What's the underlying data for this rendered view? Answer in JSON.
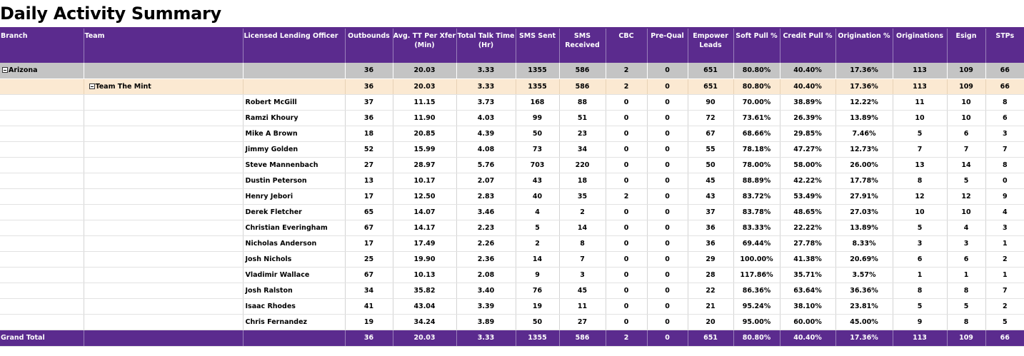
{
  "title": "Daily Activity Summary",
  "columns": {
    "branch": "Branch",
    "team": "Team",
    "officer": "Licensed Lending Officer",
    "outbounds": "Outbounds",
    "avg_tt": "Avg. TT Per Xfer (Min)",
    "total_talk": "Total Talk Time (Hr)",
    "sms_sent": "SMS Sent",
    "sms_received": "SMS Received",
    "cbc": "CBC",
    "prequal": "Pre-Qual",
    "empower": "Empower Leads",
    "soft_pull": "Soft Pull %",
    "credit_pull": "Credit Pull %",
    "origination_pct": "Origination %",
    "originations": "Originations",
    "esign": "Esign",
    "stps": "STPs"
  },
  "branch_row": {
    "name": "Arizona",
    "values": [
      "36",
      "20.03",
      "3.33",
      "1355",
      "586",
      "2",
      "0",
      "651",
      "80.80%",
      "40.40%",
      "17.36%",
      "113",
      "109",
      "66"
    ]
  },
  "team_row": {
    "name": "Team The Mint",
    "values": [
      "36",
      "20.03",
      "3.33",
      "1355",
      "586",
      "2",
      "0",
      "651",
      "80.80%",
      "40.40%",
      "17.36%",
      "113",
      "109",
      "66"
    ]
  },
  "officers": [
    {
      "name": "Robert McGill",
      "values": [
        "37",
        "11.15",
        "3.73",
        "168",
        "88",
        "0",
        "0",
        "90",
        "70.00%",
        "38.89%",
        "12.22%",
        "11",
        "10",
        "8"
      ]
    },
    {
      "name": "Ramzi Khoury",
      "values": [
        "36",
        "11.90",
        "4.03",
        "99",
        "51",
        "0",
        "0",
        "72",
        "73.61%",
        "26.39%",
        "13.89%",
        "10",
        "10",
        "6"
      ]
    },
    {
      "name": "Mike A Brown",
      "values": [
        "18",
        "20.85",
        "4.39",
        "50",
        "23",
        "0",
        "0",
        "67",
        "68.66%",
        "29.85%",
        "7.46%",
        "5",
        "6",
        "3"
      ]
    },
    {
      "name": "Jimmy Golden",
      "values": [
        "52",
        "15.99",
        "4.08",
        "73",
        "34",
        "0",
        "0",
        "55",
        "78.18%",
        "47.27%",
        "12.73%",
        "7",
        "7",
        "7"
      ]
    },
    {
      "name": "Steve Mannenbach",
      "values": [
        "27",
        "28.97",
        "5.76",
        "703",
        "220",
        "0",
        "0",
        "50",
        "78.00%",
        "58.00%",
        "26.00%",
        "13",
        "14",
        "8"
      ]
    },
    {
      "name": "Dustin Peterson",
      "values": [
        "13",
        "10.17",
        "2.07",
        "43",
        "18",
        "0",
        "0",
        "45",
        "88.89%",
        "42.22%",
        "17.78%",
        "8",
        "5",
        "0"
      ]
    },
    {
      "name": "Henry Jebori",
      "values": [
        "17",
        "12.50",
        "2.83",
        "40",
        "35",
        "2",
        "0",
        "43",
        "83.72%",
        "53.49%",
        "27.91%",
        "12",
        "12",
        "9"
      ]
    },
    {
      "name": "Derek Fletcher",
      "values": [
        "65",
        "14.07",
        "3.46",
        "4",
        "2",
        "0",
        "0",
        "37",
        "83.78%",
        "48.65%",
        "27.03%",
        "10",
        "10",
        "4"
      ]
    },
    {
      "name": "Christian Everingham",
      "values": [
        "67",
        "14.17",
        "2.23",
        "5",
        "14",
        "0",
        "0",
        "36",
        "83.33%",
        "22.22%",
        "13.89%",
        "5",
        "4",
        "3"
      ]
    },
    {
      "name": "Nicholas Anderson",
      "values": [
        "17",
        "17.49",
        "2.26",
        "2",
        "8",
        "0",
        "0",
        "36",
        "69.44%",
        "27.78%",
        "8.33%",
        "3",
        "3",
        "1"
      ]
    },
    {
      "name": "Josh Nichols",
      "values": [
        "25",
        "19.90",
        "2.36",
        "14",
        "7",
        "0",
        "0",
        "29",
        "100.00%",
        "41.38%",
        "20.69%",
        "6",
        "6",
        "2"
      ]
    },
    {
      "name": "Vladimir Wallace",
      "values": [
        "67",
        "10.13",
        "2.08",
        "9",
        "3",
        "0",
        "0",
        "28",
        "117.86%",
        "35.71%",
        "3.57%",
        "1",
        "1",
        "1"
      ]
    },
    {
      "name": "Josh Ralston",
      "values": [
        "34",
        "35.82",
        "3.40",
        "76",
        "45",
        "0",
        "0",
        "22",
        "86.36%",
        "63.64%",
        "36.36%",
        "8",
        "8",
        "7"
      ]
    },
    {
      "name": "Isaac Rhodes",
      "values": [
        "41",
        "43.04",
        "3.39",
        "19",
        "11",
        "0",
        "0",
        "21",
        "95.24%",
        "38.10%",
        "23.81%",
        "5",
        "5",
        "2"
      ]
    },
    {
      "name": "Chris Fernandez",
      "values": [
        "19",
        "34.24",
        "3.89",
        "50",
        "27",
        "0",
        "0",
        "20",
        "95.00%",
        "60.00%",
        "45.00%",
        "9",
        "8",
        "5"
      ]
    }
  ],
  "grand_total": {
    "label": "Grand Total",
    "values": [
      "36",
      "20.03",
      "3.33",
      "1355",
      "586",
      "2",
      "0",
      "651",
      "80.80%",
      "40.40%",
      "17.36%",
      "113",
      "109",
      "66"
    ]
  },
  "colors": {
    "header_bg": "#5b2b8e",
    "branch_bg": "#c4c4c4",
    "team_bg": "#fbe9d2"
  },
  "icons": {
    "collapse": "minus-box-icon"
  }
}
